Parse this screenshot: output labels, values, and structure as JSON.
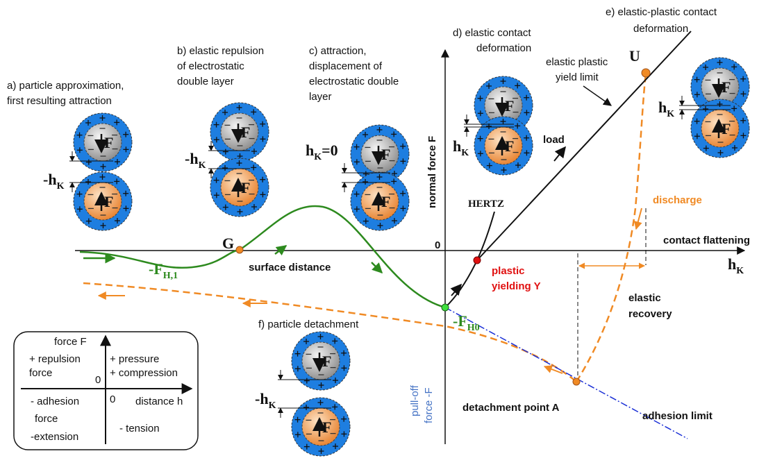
{
  "diagram": {
    "stages": {
      "a": [
        "a) particle approximation,",
        "first resulting attraction"
      ],
      "b": [
        "b) elastic repulsion",
        "of electrostatic",
        "double layer"
      ],
      "c": [
        "c) attraction,",
        "displacement of",
        "electrostatic double",
        "layer"
      ],
      "d": [
        "d) elastic contact",
        "deformation"
      ],
      "e": [
        "e) elastic-plastic contact",
        "deformation"
      ],
      "f": [
        "f) particle detachment"
      ]
    },
    "particle_force": "F",
    "gap_labels": {
      "neg": {
        "main": "-h",
        "sub": "K"
      },
      "zero": {
        "main": "h",
        "sub": "K",
        "suffix": "=0"
      },
      "pos": {
        "main": "h",
        "sub": "K"
      }
    },
    "axis": {
      "y_label": "normal force F",
      "origin": "0",
      "x_label": "contact flattening",
      "x_symbol": {
        "main": "h",
        "sub": "K"
      }
    },
    "points": {
      "G": "G",
      "U": "U",
      "Y": [
        "plastic",
        "yielding Y"
      ],
      "A": "detachment point A"
    },
    "forces": {
      "FH1": {
        "main": "-F",
        "sub": "H,1"
      },
      "FH0": {
        "main": "-F",
        "sub": "H0"
      }
    },
    "annotations": {
      "yield_limit": [
        "elastic plastic",
        "yield limit"
      ],
      "load": "load",
      "hertz": "HERTZ",
      "discharge": "discharge",
      "surface_distance": "surface distance",
      "elastic_recovery": [
        "elastic",
        "recovery"
      ],
      "pull_off": [
        "pull-off",
        "force -F"
      ],
      "adhesion_limit": "adhesion limit"
    },
    "legend": {
      "y_label": "force F",
      "q2": [
        "+ repulsion",
        "force"
      ],
      "q1": [
        "+ pressure",
        "+ compression"
      ],
      "origin_top": "0",
      "q3": [
        "- adhesion",
        "force",
        "-extension"
      ],
      "origin_bottom": "0",
      "x_label": "distance h",
      "q4": "- tension"
    }
  }
}
